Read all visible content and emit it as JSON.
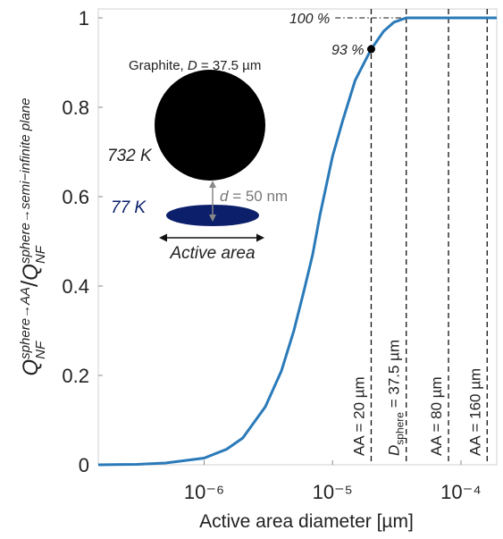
{
  "chart_data": {
    "type": "line",
    "x_label": "Active area diameter [µm]",
    "y_label": {
      "base": "Q",
      "num_sup": "sphere→AA",
      "num_sub": "NF",
      "divider": "/",
      "den_sup": "sphere→semi−infinite plane",
      "den_sub": "NF"
    },
    "x_log": true,
    "xlim": [
      1.5e-07,
      0.00019
    ],
    "xticks": [
      {
        "value": 1e-06,
        "label": "10⁻⁶"
      },
      {
        "value": 1e-05,
        "label": "10⁻⁵"
      },
      {
        "value": 0.0001,
        "label": "10⁻⁴"
      }
    ],
    "ylim": [
      0,
      1.02
    ],
    "yticks": [
      0,
      0.2,
      0.4,
      0.6,
      0.8,
      1
    ],
    "series": [
      {
        "color": "#2a7ab9",
        "x": [
          1.5e-07,
          3e-07,
          5e-07,
          1e-06,
          1.5e-06,
          2e-06,
          3e-06,
          4e-06,
          5e-06,
          6e-06,
          7e-06,
          8e-06,
          1e-05,
          1.2e-05,
          1.5e-05,
          2e-05,
          2.5e-05,
          3e-05,
          3.75e-05,
          0.0001,
          0.00019
        ],
        "values": [
          0,
          0.001,
          0.004,
          0.015,
          0.035,
          0.06,
          0.13,
          0.21,
          0.3,
          0.39,
          0.47,
          0.56,
          0.69,
          0.77,
          0.86,
          0.93,
          0.97,
          0.99,
          1,
          1,
          1
        ]
      }
    ],
    "vlines": [
      {
        "x": 2e-05,
        "label": "AA = 20 µm"
      },
      {
        "x": 3.75e-05,
        "label": "D",
        "subscript": "sphere",
        "label_end": " = 37.5 µm"
      },
      {
        "x": 8e-05,
        "label": "AA = 80 µm"
      },
      {
        "x": 0.00016,
        "label": "AA = 160 µm"
      }
    ],
    "points": [
      {
        "x": 2e-05,
        "y": 0.93,
        "label": "93 %"
      }
    ],
    "reference": {
      "y": 1,
      "x_start": 1.05e-05,
      "x_end": 3.75e-05,
      "label": "100 %"
    },
    "inset": {
      "sphere_label": "Graphite, ",
      "sphere_symbol": "D",
      "sphere_value": " = 37.5 µm",
      "hot_temp": "732 K",
      "cold_temp": "77 K",
      "gap_symbol": "d",
      "gap_value": " = 50 nm",
      "area_label": "Active area"
    }
  }
}
